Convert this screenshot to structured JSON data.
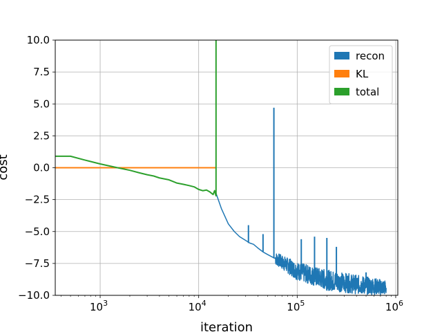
{
  "chart_data": {
    "type": "line",
    "xlabel": "iteration",
    "ylabel": "cost",
    "xscale": "log",
    "xlim": [
      350,
      1050000
    ],
    "ylim": [
      -10,
      10
    ],
    "grid": true,
    "legend_position": "top-right",
    "yticks": [
      10,
      7.5,
      5,
      2.5,
      0,
      -2.5,
      -5,
      -7.5,
      -10
    ],
    "ytick_labels": [
      "10.0",
      "7.5",
      "5.0",
      "2.5",
      "0.0",
      "−2.5",
      "−5.0",
      "−7.5",
      "−10.0"
    ],
    "xticks": [
      {
        "value": 1000,
        "base": "10",
        "exp": "3"
      },
      {
        "value": 10000,
        "base": "10",
        "exp": "4"
      },
      {
        "value": 100000,
        "base": "10",
        "exp": "5"
      },
      {
        "value": 1000000,
        "base": "10",
        "exp": "6"
      }
    ],
    "series": [
      {
        "name": "recon",
        "color": "#1f77b4",
        "x": [
          15000,
          17000,
          20000,
          23000,
          26000,
          30000,
          33000,
          36000,
          40000,
          45000,
          50000,
          56000,
          60000,
          70000,
          80000,
          100000,
          120000,
          150000,
          200000,
          250000,
          300000,
          400000,
          500000,
          600000,
          700000,
          800000
        ],
        "y": [
          -2.0,
          -3.2,
          -4.4,
          -5.0,
          -5.4,
          -5.7,
          -5.9,
          -6.0,
          -6.3,
          -6.6,
          -6.8,
          -7.0,
          -7.2,
          -7.5,
          -7.8,
          -8.2,
          -8.5,
          -8.8,
          -9.0,
          -9.1,
          -9.2,
          -9.3,
          -9.4,
          -9.4,
          -9.5,
          -9.5
        ],
        "spikes": [
          {
            "x": 32000,
            "y": -4.5
          },
          {
            "x": 45000,
            "y": -5.2
          },
          {
            "x": 58000,
            "y": 4.7
          },
          {
            "x": 110000,
            "y": -5.6
          },
          {
            "x": 150000,
            "y": -5.4
          },
          {
            "x": 200000,
            "y": -5.5
          },
          {
            "x": 250000,
            "y": -6.2
          },
          {
            "x": 500000,
            "y": -8.2
          }
        ],
        "noise_band": [
          {
            "x": 60000,
            "low": -7.6,
            "high": -6.6
          },
          {
            "x": 100000,
            "low": -8.8,
            "high": -7.4
          },
          {
            "x": 200000,
            "low": -9.6,
            "high": -8.0
          },
          {
            "x": 400000,
            "low": -9.9,
            "high": -8.4
          },
          {
            "x": 800000,
            "low": -10.0,
            "high": -8.8
          }
        ]
      },
      {
        "name": "KL",
        "color": "#ff7f0e",
        "x": [
          350,
          1000,
          2000,
          5000,
          10000,
          15000
        ],
        "y": [
          0.0,
          0.0,
          0.0,
          0.0,
          0.0,
          0.0
        ]
      },
      {
        "name": "total",
        "color": "#2ca02c",
        "x": [
          350,
          500,
          700,
          1000,
          1500,
          2000,
          2500,
          3000,
          3500,
          4000,
          5000,
          6000,
          7000,
          8000,
          9000,
          10000,
          11000,
          12000,
          13000,
          14000,
          14500,
          15000,
          15000
        ],
        "y": [
          0.9,
          0.9,
          0.6,
          0.3,
          0.0,
          -0.2,
          -0.4,
          -0.55,
          -0.65,
          -0.8,
          -0.95,
          -1.2,
          -1.3,
          -1.4,
          -1.5,
          -1.7,
          -1.8,
          -1.75,
          -1.9,
          -2.1,
          -1.8,
          -2.2,
          10.0
        ]
      }
    ]
  }
}
